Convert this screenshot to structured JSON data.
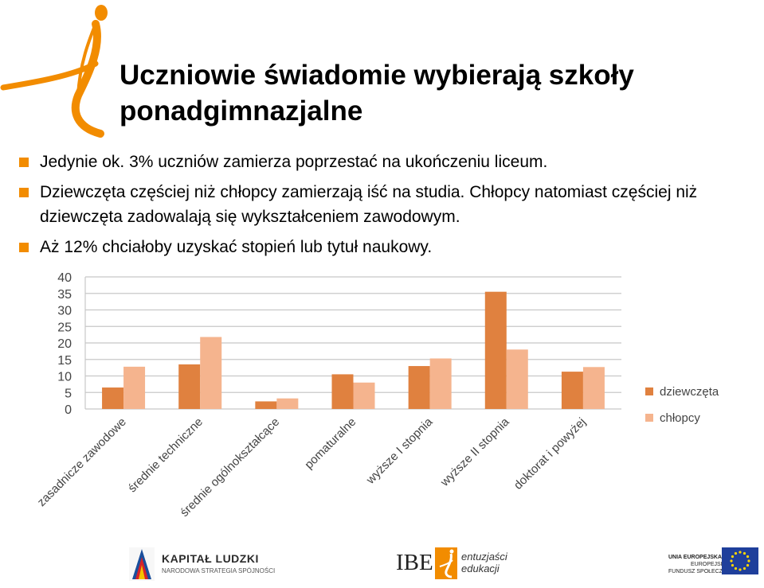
{
  "slide": {
    "title": "Uczniowie świadomie wybierają szkoły ponadgimnazjalne",
    "bullets": [
      "Jedynie ok. 3% uczniów zamierza poprzestać na ukończeniu liceum.",
      "Dziewczęta częściej niż chłopcy zamierzają iść na studia. Chłopcy natomiast częściej niż dziewczęta zadowalają się wykształceniem zawodowym.",
      "Aż 12% chciałoby uzyskać stopień lub tytuł naukowy."
    ],
    "accent_color": "#f28c00"
  },
  "chart_data": {
    "type": "bar",
    "categories": [
      "zasadnicze zawodowe",
      "średnie techniczne",
      "średnie ogólnokształcące",
      "pomaturalne",
      "wyższe I stopnia",
      "wyższe II stopnia",
      "doktorat i powyżej"
    ],
    "series": [
      {
        "name": "dziewczęta",
        "values": [
          6.5,
          13.5,
          2.3,
          10.5,
          13,
          35.5,
          11.3
        ],
        "color": "#e0813f"
      },
      {
        "name": "chłopcy",
        "values": [
          12.8,
          21.8,
          3.2,
          8,
          15.3,
          18,
          12.7
        ],
        "color": "#f5b48e"
      }
    ],
    "yticks": [
      "0",
      "5",
      "10",
      "15",
      "20",
      "25",
      "30",
      "35",
      "40"
    ],
    "ylim": [
      0,
      40
    ],
    "grid": true,
    "legend": "right",
    "title": "",
    "xlabel": "",
    "ylabel": ""
  },
  "footer": {
    "kl_name": "KAPITAŁ LUDZKI",
    "kl_sub": "NARODOWA STRATEGIA SPÓJNOŚCI",
    "ibe": "IBE",
    "ee_line1": "entuzjaści",
    "ee_line2": "edukacji",
    "eu_line1": "UNIA EUROPEJSKA",
    "eu_line2": "EUROPEJSKI",
    "eu_line3": "FUNDUSZ SPOŁECZNY"
  }
}
